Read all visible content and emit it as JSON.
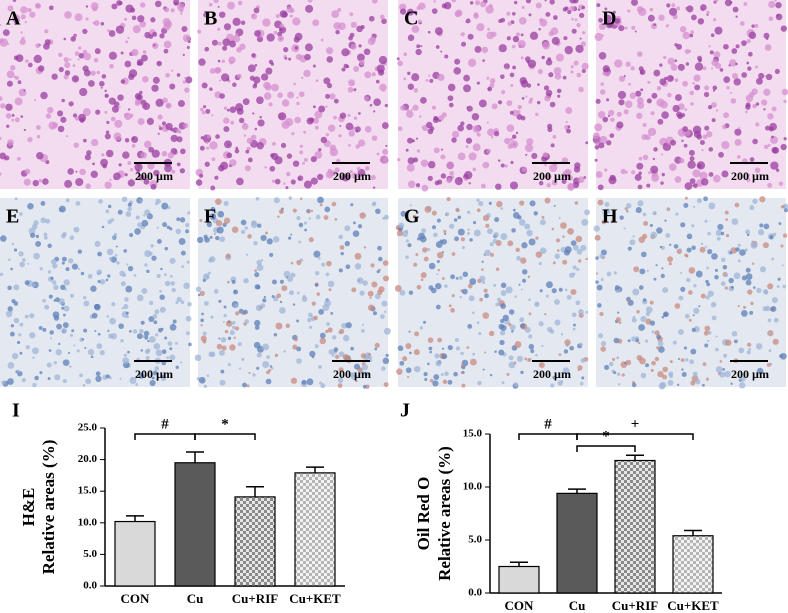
{
  "panels": [
    {
      "label": "A",
      "scale": "200 µm"
    },
    {
      "label": "B",
      "scale": "200 µm"
    },
    {
      "label": "C",
      "scale": "200 µm"
    },
    {
      "label": "D",
      "scale": "200 µm"
    },
    {
      "label": "E",
      "scale": "200 µm"
    },
    {
      "label": "F",
      "scale": "200 µm"
    },
    {
      "label": "G",
      "scale": "200 µm"
    },
    {
      "label": "H",
      "scale": "200 µm"
    }
  ],
  "chart_data": [
    {
      "type": "bar",
      "panel": "I",
      "ylabel": [
        "H&E",
        "Relative areas (%)"
      ],
      "categories": [
        "CON",
        "Cu",
        "Cu+RIF",
        "Cu+KET"
      ],
      "values": [
        10.2,
        19.5,
        14.1,
        17.9
      ],
      "errors": [
        0.9,
        1.7,
        1.6,
        0.9
      ],
      "colors": [
        "#d9d9d9",
        "#5a5a5a",
        "#bdbdbd",
        "#dcdcdc"
      ],
      "patterned": [
        false,
        false,
        true,
        true
      ],
      "ylim": [
        0,
        25
      ],
      "yticks": [
        {
          "value": 0,
          "label": "0.0"
        },
        {
          "value": 5,
          "label": "5.0"
        },
        {
          "value": 10,
          "label": "10.0"
        },
        {
          "value": 15,
          "label": "15.0"
        },
        {
          "value": 20,
          "label": "20.0"
        },
        {
          "value": 25,
          "label": "25.0"
        }
      ],
      "annotations": [
        "#",
        "*"
      ]
    },
    {
      "type": "bar",
      "panel": "J",
      "ylabel": [
        "Oil Red O",
        "Relative areas (%)"
      ],
      "categories": [
        "CON",
        "Cu",
        "Cu+RIF",
        "Cu+KET"
      ],
      "values": [
        2.5,
        9.4,
        12.5,
        5.4
      ],
      "errors": [
        0.4,
        0.4,
        0.5,
        0.5
      ],
      "colors": [
        "#d9d9d9",
        "#5a5a5a",
        "#bdbdbd",
        "#dcdcdc"
      ],
      "patterned": [
        false,
        false,
        true,
        true
      ],
      "ylim": [
        0,
        15
      ],
      "yticks": [
        {
          "value": 0,
          "label": "0.0"
        },
        {
          "value": 5,
          "label": "5.0"
        },
        {
          "value": 10,
          "label": "10.0"
        },
        {
          "value": 15,
          "label": "15.0"
        }
      ],
      "annotations": [
        "#",
        "*",
        "+"
      ]
    }
  ]
}
